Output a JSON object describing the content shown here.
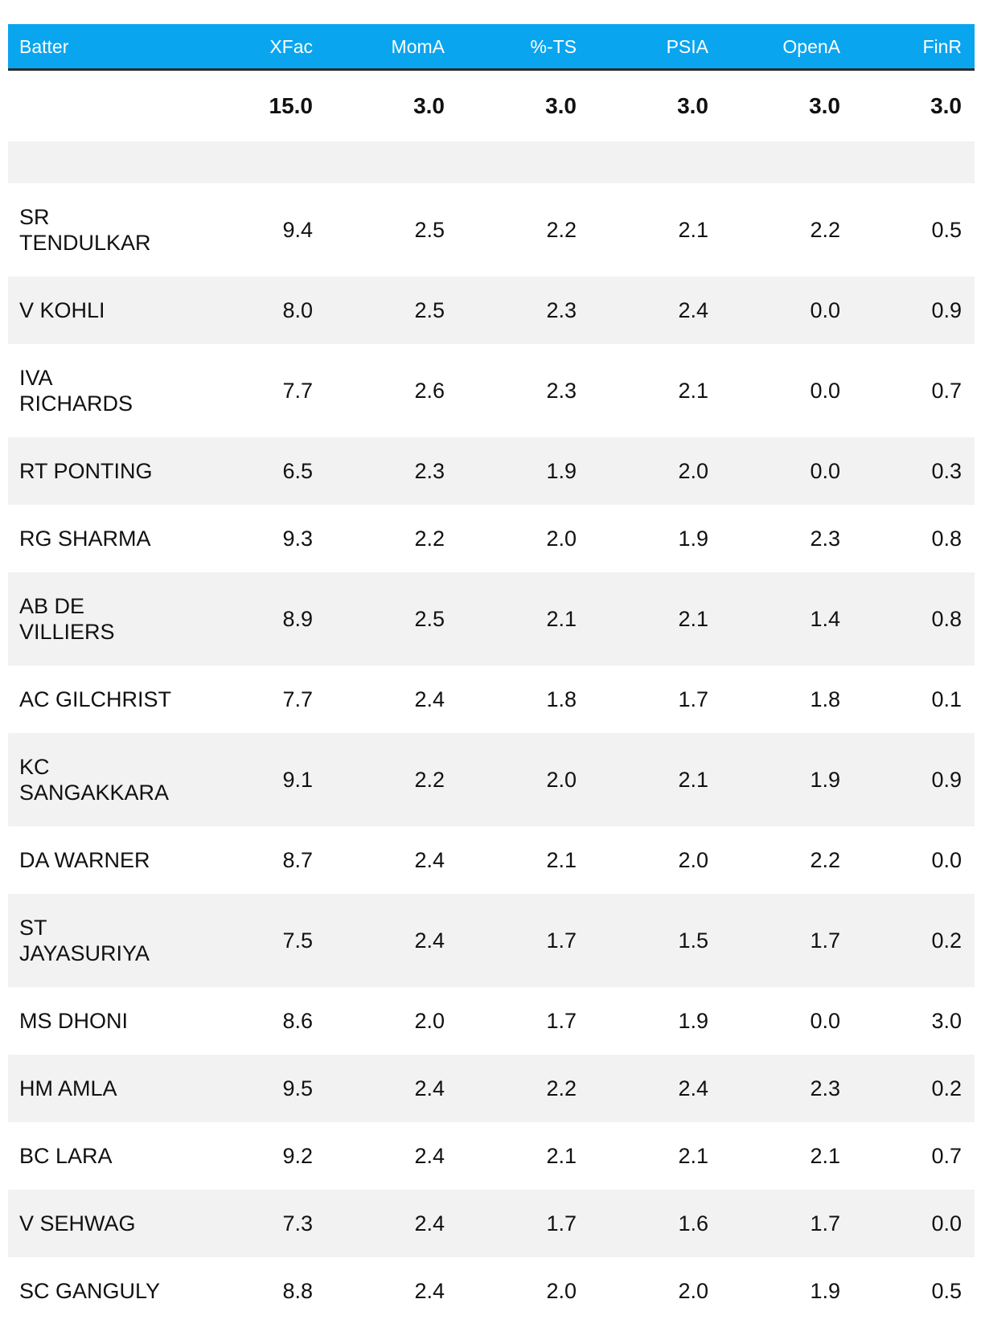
{
  "table": {
    "headers": [
      "Batter",
      "XFac",
      "MomA",
      "%-TS",
      "PSIA",
      "OpenA",
      "FinR"
    ],
    "weights": [
      "",
      "15.0",
      "3.0",
      "3.0",
      "3.0",
      "3.0",
      "3.0"
    ],
    "rows": [
      [
        "SR TENDULKAR",
        "9.4",
        "2.5",
        "2.2",
        "2.1",
        "2.2",
        "0.5"
      ],
      [
        "V KOHLI",
        "8.0",
        "2.5",
        "2.3",
        "2.4",
        "0.0",
        "0.9"
      ],
      [
        "IVA RICHARDS",
        "7.7",
        "2.6",
        "2.3",
        "2.1",
        "0.0",
        "0.7"
      ],
      [
        "RT PONTING",
        "6.5",
        "2.3",
        "1.9",
        "2.0",
        "0.0",
        "0.3"
      ],
      [
        "RG SHARMA",
        "9.3",
        "2.2",
        "2.0",
        "1.9",
        "2.3",
        "0.8"
      ],
      [
        "AB DE VILLIERS",
        "8.9",
        "2.5",
        "2.1",
        "2.1",
        "1.4",
        "0.8"
      ],
      [
        "AC GILCHRIST",
        "7.7",
        "2.4",
        "1.8",
        "1.7",
        "1.8",
        "0.1"
      ],
      [
        "KC SANGAKKARA",
        "9.1",
        "2.2",
        "2.0",
        "2.1",
        "1.9",
        "0.9"
      ],
      [
        "DA WARNER",
        "8.7",
        "2.4",
        "2.1",
        "2.0",
        "2.2",
        "0.0"
      ],
      [
        "ST JAYASURIYA",
        "7.5",
        "2.4",
        "1.7",
        "1.5",
        "1.7",
        "0.2"
      ],
      [
        "MS DHONI",
        "8.6",
        "2.0",
        "1.7",
        "1.9",
        "0.0",
        "3.0"
      ],
      [
        "HM AMLA",
        "9.5",
        "2.4",
        "2.2",
        "2.4",
        "2.3",
        "0.2"
      ],
      [
        "BC LARA",
        "9.2",
        "2.4",
        "2.1",
        "2.1",
        "2.1",
        "0.7"
      ],
      [
        "V SEHWAG",
        "7.3",
        "2.4",
        "1.7",
        "1.6",
        "1.7",
        "0.0"
      ],
      [
        "SC GANGULY",
        "8.8",
        "2.4",
        "2.0",
        "2.0",
        "1.9",
        "0.5"
      ]
    ]
  },
  "colors": {
    "header_bg": "#0aa5ef",
    "stripe": "#f2f2f2",
    "rule": "#2c2c2c"
  }
}
